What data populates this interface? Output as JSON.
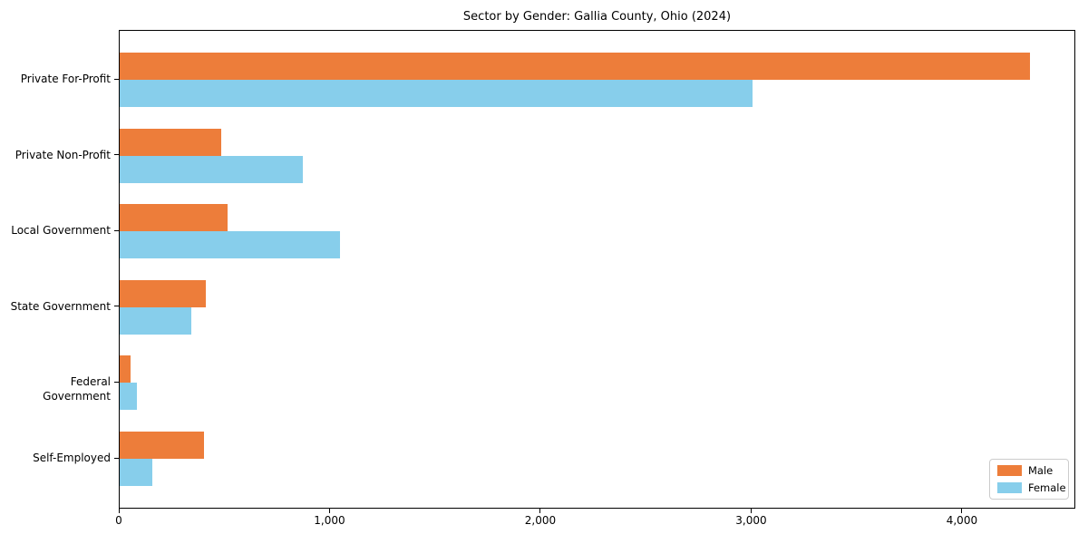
{
  "chart_data": {
    "type": "bar",
    "orientation": "horizontal",
    "title": "Sector by Gender: Gallia County, Ohio (2024)",
    "categories": [
      "Private For-Profit",
      "Private Non-Profit",
      "Local Government",
      "State Government",
      "Federal Government",
      "Self-Employed"
    ],
    "series": [
      {
        "name": "Male",
        "color": "#ed7d3a",
        "values": [
          4317,
          483,
          512,
          407,
          50,
          400
        ]
      },
      {
        "name": "Female",
        "color": "#87ceeb",
        "values": [
          3001,
          868,
          1047,
          340,
          83,
          156
        ]
      }
    ],
    "xlabel": "",
    "ylabel": "",
    "xlim": [
      0,
      4538
    ],
    "xticks": {
      "values": [
        0,
        1000,
        2000,
        3000,
        4000
      ],
      "labels": [
        "0",
        "1,000",
        "2,000",
        "3,000",
        "4,000"
      ]
    },
    "grid": false,
    "legend": {
      "position": "lower right"
    }
  }
}
